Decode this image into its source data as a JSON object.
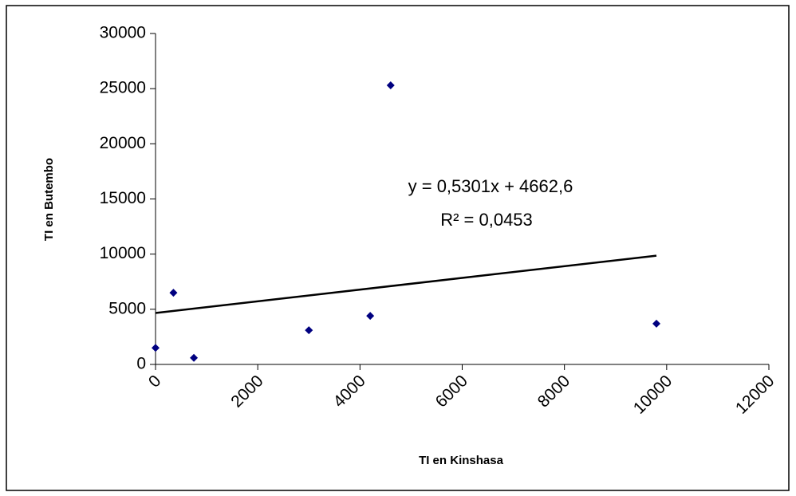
{
  "chart_data": {
    "type": "scatter",
    "x_label": "TI en Kinshasa",
    "y_label": "TI en Butembo",
    "series": [
      {
        "color": "#000080",
        "x": [
          0,
          350,
          750,
          3000,
          4200,
          4600,
          9800
        ],
        "values": [
          1500,
          6500,
          600,
          3100,
          4400,
          25300,
          3700
        ]
      }
    ],
    "trendline": {
      "slope": 0.5301,
      "intercept": 4662.6,
      "color": "#000000",
      "equation_label": "y = 0,5301x + 4662,6",
      "r_squared_label": "R² = 0,0453"
    },
    "xlim": [
      0,
      12000
    ],
    "xticks": [
      0,
      2000,
      4000,
      6000,
      8000,
      10000,
      12000
    ],
    "ylim": [
      0,
      30000
    ],
    "yticks": [
      0,
      5000,
      10000,
      15000,
      20000,
      25000,
      30000
    ],
    "grid": false
  }
}
